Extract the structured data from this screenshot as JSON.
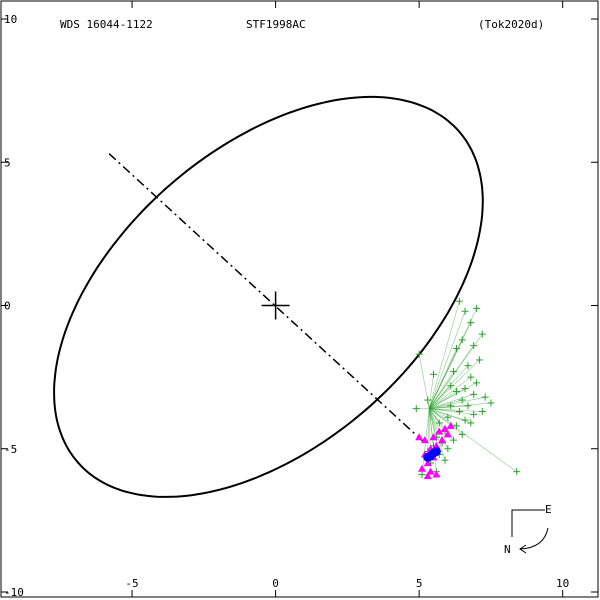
{
  "header": {
    "wds_id": "WDS 16044-1122",
    "discoverer": "STF1998AC",
    "reference": "(Tok2020d)"
  },
  "compass": {
    "east_label": "E",
    "north_label": "N"
  },
  "chart_data": {
    "type": "scatter",
    "title": "",
    "xlabel": "",
    "ylabel": "",
    "xlim": [
      -9.6,
      11.3
    ],
    "ylim": [
      -10,
      10
    ],
    "x_ticks": [
      "-5",
      "0",
      "5",
      "10"
    ],
    "y_ticks": [
      "10",
      "5",
      "0",
      "-5",
      "-10"
    ],
    "x_tick_values": [
      -5,
      0,
      5,
      10
    ],
    "y_tick_values": [
      10,
      5,
      0,
      -5,
      -10
    ],
    "y_edge_ticks": [
      "10",
      "-10"
    ],
    "grid": false,
    "primary_marker": {
      "x": 0,
      "y": 0,
      "symbol": "+"
    },
    "orbit": {
      "center": [
        -0.25,
        0.3
      ],
      "semi_major": 8.8,
      "semi_minor": 5.2,
      "angle_deg": 41,
      "color": "#000000"
    },
    "line_of_nodes": {
      "from": [
        -5.8,
        5.3
      ],
      "to": [
        5.2,
        -4.8
      ],
      "style": "dash-dot"
    },
    "series": [
      {
        "color": "#2ca02c",
        "marker": "+",
        "points": [
          [
            6.4,
            0.15
          ],
          [
            6.6,
            -0.2
          ],
          [
            7.0,
            -0.1
          ],
          [
            6.8,
            -0.6
          ],
          [
            7.2,
            -1.0
          ],
          [
            6.5,
            -1.2
          ],
          [
            6.3,
            -1.5
          ],
          [
            6.9,
            -1.4
          ],
          [
            7.1,
            -1.9
          ],
          [
            6.7,
            -2.1
          ],
          [
            6.2,
            -2.3
          ],
          [
            6.8,
            -2.5
          ],
          [
            7.0,
            -2.7
          ],
          [
            6.6,
            -2.9
          ],
          [
            6.3,
            -3.0
          ],
          [
            6.9,
            -3.1
          ],
          [
            7.3,
            -3.2
          ],
          [
            6.5,
            -3.3
          ],
          [
            6.1,
            -3.5
          ],
          [
            6.7,
            -3.5
          ],
          [
            7.5,
            -3.4
          ],
          [
            6.4,
            -3.7
          ],
          [
            6.9,
            -3.8
          ],
          [
            7.2,
            -3.7
          ],
          [
            6.0,
            -3.9
          ],
          [
            6.6,
            -4.0
          ],
          [
            5.7,
            -4.1
          ],
          [
            6.3,
            -4.2
          ],
          [
            5.9,
            -4.4
          ],
          [
            6.5,
            -4.5
          ],
          [
            5.6,
            -4.6
          ],
          [
            6.2,
            -4.7
          ],
          [
            5.8,
            -4.8
          ],
          [
            5.5,
            -4.9
          ],
          [
            6.0,
            -5.0
          ],
          [
            5.3,
            -5.1
          ],
          [
            5.7,
            -5.2
          ],
          [
            5.9,
            -5.4
          ],
          [
            5.4,
            -5.5
          ],
          [
            5.6,
            -5.8
          ],
          [
            5.1,
            -5.9
          ],
          [
            5.0,
            -1.7
          ],
          [
            5.5,
            -2.4
          ],
          [
            4.9,
            -3.6
          ],
          [
            5.3,
            -3.3
          ],
          [
            6.1,
            -2.8
          ],
          [
            8.4,
            -5.8
          ],
          [
            6.8,
            -4.1
          ]
        ]
      },
      {
        "color": "#ff00ff",
        "marker": "triangle",
        "points": [
          [
            5.0,
            -4.6
          ],
          [
            5.2,
            -4.7
          ],
          [
            5.8,
            -4.7
          ],
          [
            6.0,
            -4.5
          ],
          [
            5.6,
            -4.9
          ],
          [
            5.4,
            -5.0
          ],
          [
            5.2,
            -5.2
          ],
          [
            5.5,
            -5.3
          ],
          [
            5.3,
            -5.5
          ],
          [
            5.1,
            -5.7
          ],
          [
            5.4,
            -5.8
          ],
          [
            5.3,
            -5.95
          ],
          [
            5.6,
            -5.9
          ],
          [
            5.9,
            -4.3
          ],
          [
            6.1,
            -4.2
          ],
          [
            5.7,
            -4.4
          ],
          [
            5.5,
            -4.6
          ]
        ]
      },
      {
        "color": "#0000ff",
        "marker": "circle",
        "points": [
          [
            5.4,
            -5.25
          ],
          [
            5.5,
            -5.15
          ],
          [
            5.3,
            -5.3
          ],
          [
            5.6,
            -5.1
          ]
        ]
      }
    ]
  }
}
